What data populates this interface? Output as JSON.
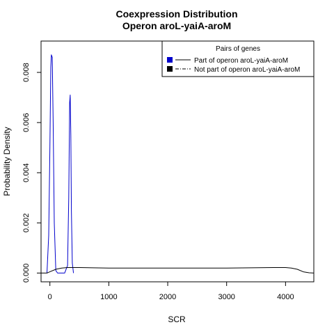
{
  "chart_data": {
    "type": "line",
    "title": "Coexpression Distribution",
    "subtitle": "Operon aroL-yaiA-aroM",
    "xlabel": "SCR",
    "ylabel": "Probability Density",
    "xlim": [
      -150,
      4480
    ],
    "ylim": [
      -0.00035,
      0.00925
    ],
    "x_ticks": [
      0,
      1000,
      2000,
      3000,
      4000
    ],
    "x_tick_labels": [
      "0",
      "1000",
      "2000",
      "3000",
      "4000"
    ],
    "y_ticks": [
      0,
      0.002,
      0.004,
      0.006,
      0.008
    ],
    "y_tick_labels": [
      "0.000",
      "0.002",
      "0.004",
      "0.006",
      "0.008"
    ],
    "grid": false,
    "legend": {
      "title": "Pairs of genes",
      "placement": "top-right",
      "entries": [
        {
          "label": "Part of operon aroL-yaiA-aroM",
          "color": "#0000cc",
          "line": "solid"
        },
        {
          "label": "Not part of operon aroL-yaiA-aroM",
          "color": "#000000",
          "line": "dashdot"
        }
      ]
    },
    "series": [
      {
        "name": "Part of operon aroL-yaiA-aroM",
        "color": "#0000cc",
        "x": [
          -50,
          -20,
          0,
          15,
          25,
          40,
          55,
          75,
          100,
          130,
          250,
          300,
          320,
          335,
          345,
          355,
          365,
          380,
          400
        ],
        "y": [
          0,
          0.0015,
          0.005,
          0.0082,
          0.0087,
          0.0086,
          0.006,
          0.002,
          0.0001,
          0,
          0,
          0.0003,
          0.003,
          0.0068,
          0.0071,
          0.0055,
          0.0025,
          0.0004,
          0
        ]
      },
      {
        "name": "Not part of operon aroL-yaiA-aroM",
        "color": "#000000",
        "x": [
          -150,
          -50,
          0,
          100,
          200,
          300,
          500,
          1000,
          2000,
          3000,
          3800,
          4000,
          4100,
          4200,
          4300,
          4400,
          4480
        ],
        "y": [
          0,
          0,
          5e-05,
          0.00015,
          0.0002,
          0.00022,
          0.00022,
          0.0002,
          0.0002,
          0.0002,
          0.00022,
          0.00022,
          0.0002,
          0.00015,
          5e-05,
          1e-05,
          0
        ]
      }
    ]
  }
}
